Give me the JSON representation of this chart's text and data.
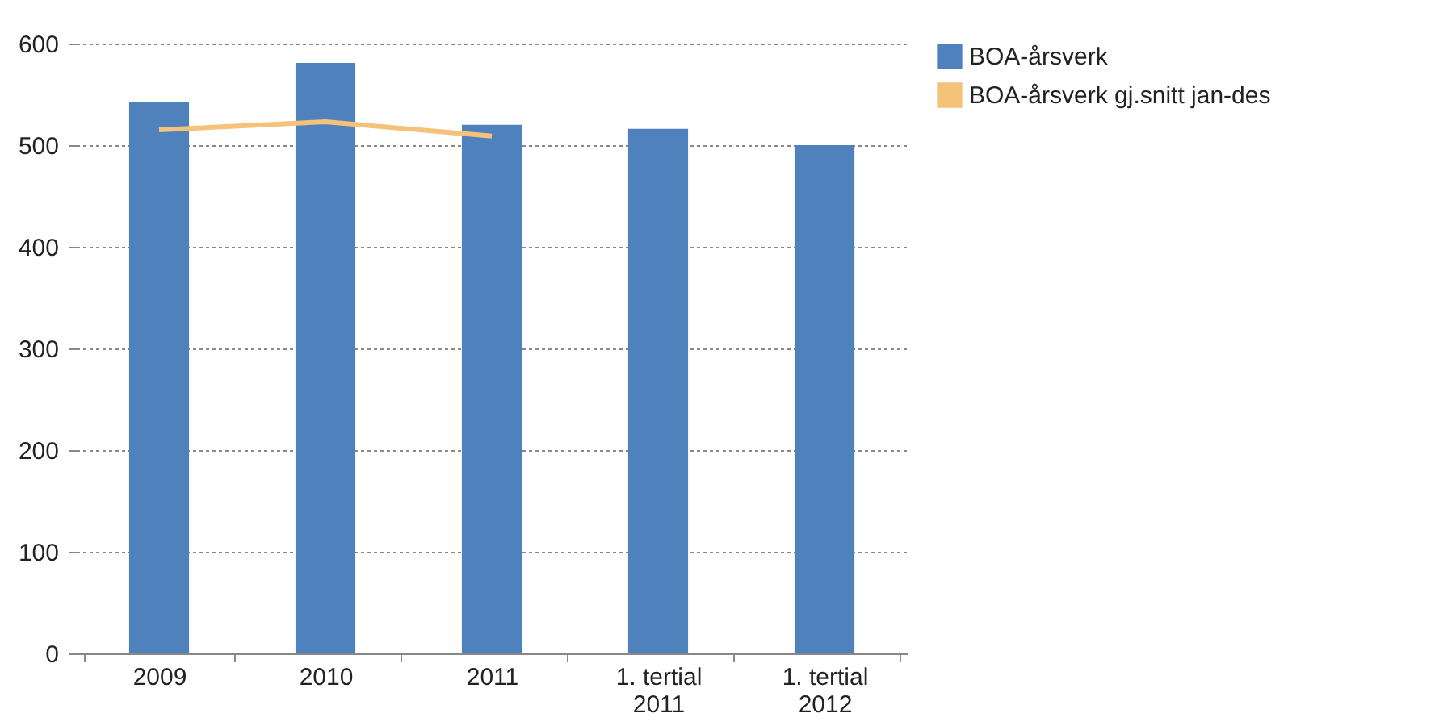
{
  "chart_data": {
    "type": "bar",
    "categories": [
      "2009",
      "2010",
      "2011",
      "1. tertial 2011",
      "1. tertial 2012"
    ],
    "series": [
      {
        "name": "BOA-årsverk",
        "color": "#4f81bd",
        "values": [
          542,
          581,
          520,
          516,
          500
        ]
      },
      {
        "name": "BOA-årsverk gj.snitt jan-des",
        "type": "line",
        "color": "#f5c27a",
        "values": [
          515,
          523,
          509,
          null,
          null
        ]
      }
    ],
    "ylim": [
      0,
      600
    ],
    "yticks": [
      0,
      100,
      200,
      300,
      400,
      500,
      600
    ],
    "grid": "y",
    "legend": "right"
  }
}
